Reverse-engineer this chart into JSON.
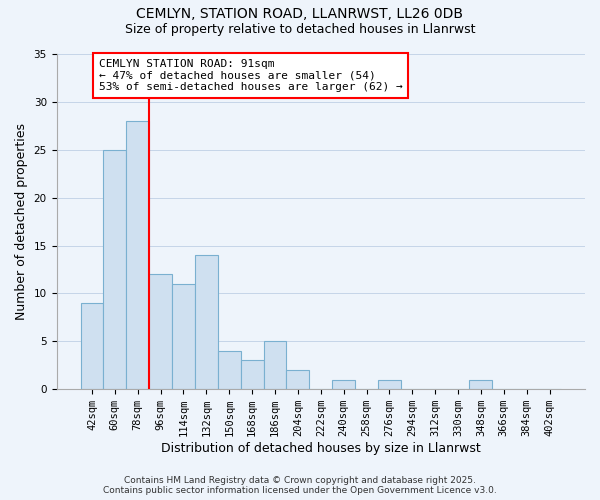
{
  "title": "CEMLYN, STATION ROAD, LLANRWST, LL26 0DB",
  "subtitle": "Size of property relative to detached houses in Llanrwst",
  "xlabel": "Distribution of detached houses by size in Llanrwst",
  "ylabel": "Number of detached properties",
  "bin_labels": [
    "42sqm",
    "60sqm",
    "78sqm",
    "96sqm",
    "114sqm",
    "132sqm",
    "150sqm",
    "168sqm",
    "186sqm",
    "204sqm",
    "222sqm",
    "240sqm",
    "258sqm",
    "276sqm",
    "294sqm",
    "312sqm",
    "330sqm",
    "348sqm",
    "366sqm",
    "384sqm",
    "402sqm"
  ],
  "bar_values": [
    9,
    25,
    28,
    12,
    11,
    14,
    4,
    3,
    5,
    2,
    0,
    1,
    0,
    1,
    0,
    0,
    0,
    1,
    0,
    0,
    0
  ],
  "bar_color": "#cfe0f0",
  "bar_edge_color": "#7ab0d0",
  "vline_color": "red",
  "ylim": [
    0,
    35
  ],
  "yticks": [
    0,
    5,
    10,
    15,
    20,
    25,
    30,
    35
  ],
  "annotation_title": "CEMLYN STATION ROAD: 91sqm",
  "annotation_line1": "← 47% of detached houses are smaller (54)",
  "annotation_line2": "53% of semi-detached houses are larger (62) →",
  "footer1": "Contains HM Land Registry data © Crown copyright and database right 2025.",
  "footer2": "Contains public sector information licensed under the Open Government Licence v3.0.",
  "background_color": "#eef4fb",
  "grid_color": "#c5d5e8",
  "title_fontsize": 10,
  "subtitle_fontsize": 9,
  "axis_label_fontsize": 9,
  "tick_fontsize": 7.5,
  "annotation_fontsize": 8,
  "footer_fontsize": 6.5
}
